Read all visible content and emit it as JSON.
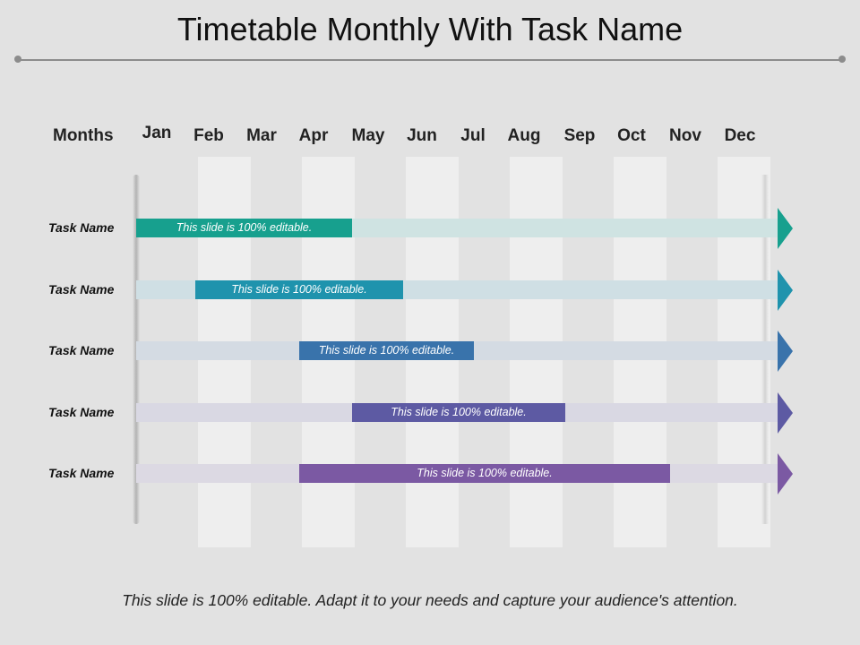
{
  "title": "Timetable Monthly With Task Name",
  "months_label": "Months",
  "months": [
    "Jan",
    "Feb",
    "Mar",
    "Apr",
    "May",
    "Jun",
    "Jul",
    "Aug",
    "Sep",
    "Oct",
    "Nov",
    "Dec"
  ],
  "tasks": [
    {
      "name": "Task Name",
      "bar_text": "This slide is 100% editable.",
      "color": "#17a08e",
      "track_color": "#cfe3e2",
      "start_month": 1,
      "end_month": 5
    },
    {
      "name": "Task Name",
      "bar_text": "This slide is 100% editable.",
      "color": "#1f93ad",
      "track_color": "#cfdfe4",
      "start_month": 2,
      "end_month": 6
    },
    {
      "name": "Task Name",
      "bar_text": "This slide is 100% editable.",
      "color": "#3973ab",
      "track_color": "#d4dbe3",
      "start_month": 4,
      "end_month": 7
    },
    {
      "name": "Task Name",
      "bar_text": "This slide is 100% editable.",
      "color": "#5d5aa3",
      "track_color": "#d9d8e3",
      "start_month": 5,
      "end_month": 9
    },
    {
      "name": "Task Name",
      "bar_text": "This slide is 100% editable.",
      "color": "#7b59a3",
      "track_color": "#dcd9e3",
      "start_month": 4,
      "end_month": 11
    }
  ],
  "footer": "This slide is 100% editable. Adapt it to your needs and capture your audience's attention."
}
